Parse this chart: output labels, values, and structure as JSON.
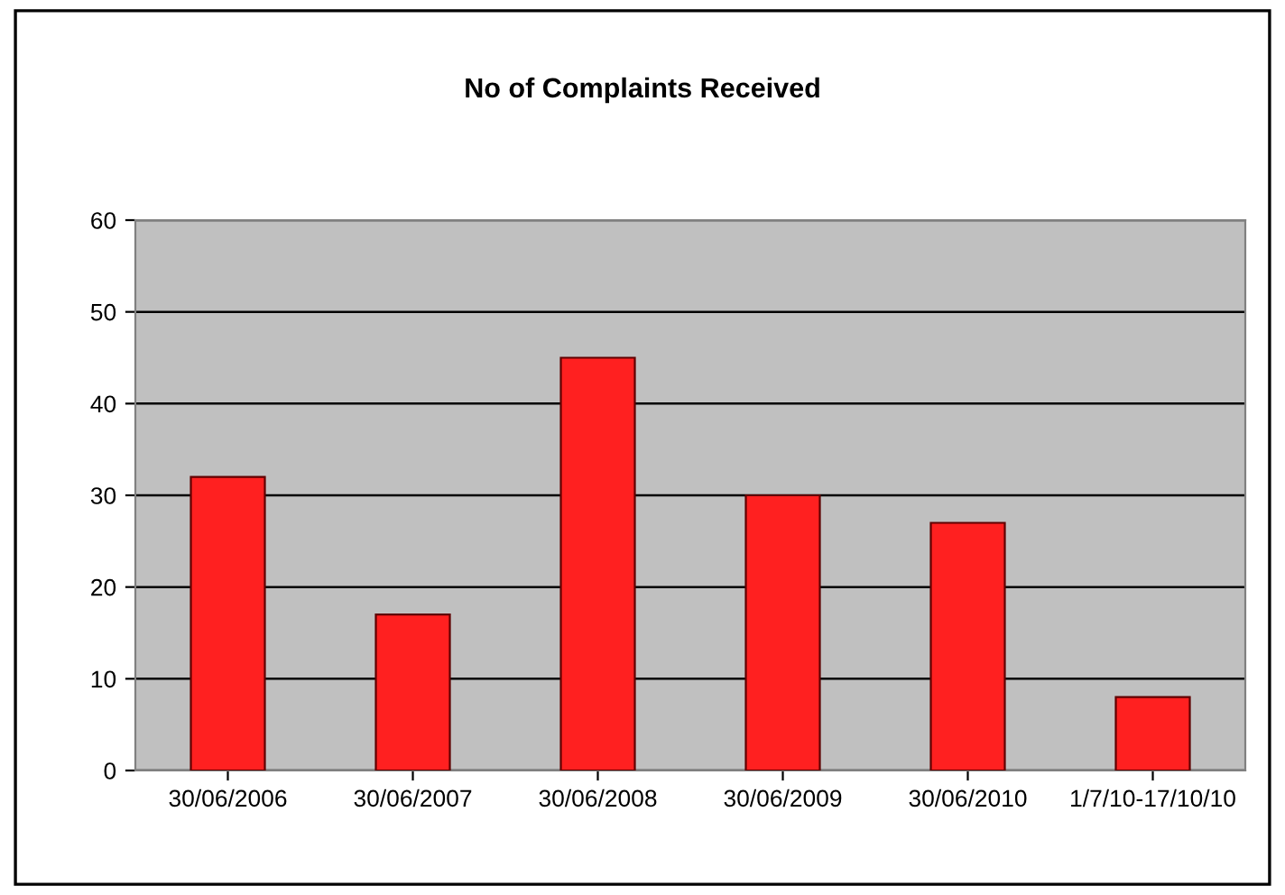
{
  "chart_data": {
    "type": "bar",
    "title": "No of Complaints Received",
    "categories": [
      "30/06/2006",
      "30/06/2007",
      "30/06/2008",
      "30/06/2009",
      "30/06/2010",
      "1/7/10-17/10/10"
    ],
    "values": [
      32,
      17,
      45,
      30,
      27,
      8
    ],
    "color": "#ff2020",
    "ylim": [
      0,
      60
    ],
    "yticks": [
      0,
      10,
      20,
      30,
      40,
      50,
      60
    ],
    "grid": "y"
  }
}
